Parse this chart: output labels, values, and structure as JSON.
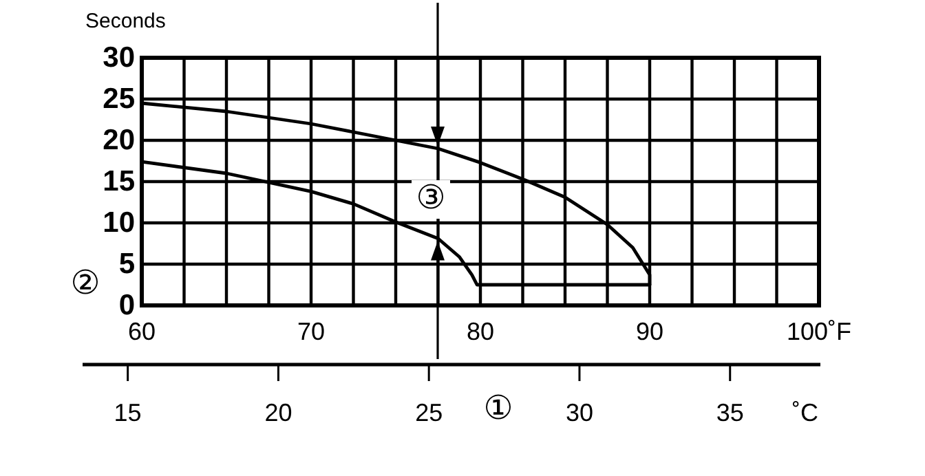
{
  "chart_data": {
    "type": "line",
    "ylabel": "Seconds",
    "x2label": "˚C",
    "xlim": [
      60,
      100
    ],
    "xticks": [
      60,
      {
        "value": 62.5,
        "label": null
      },
      {
        "value": 65,
        "label": null
      },
      {
        "value": 67.5,
        "label": null
      },
      70,
      {
        "value": 72.5,
        "label": null
      },
      {
        "value": 75,
        "label": null
      },
      {
        "value": 77.5,
        "label": null
      },
      80,
      {
        "value": 82.5,
        "label": null
      },
      {
        "value": 85,
        "label": null
      },
      {
        "value": 87.5,
        "label": null
      },
      90,
      {
        "value": 92.5,
        "label": null
      },
      {
        "value": 95,
        "label": null
      },
      {
        "value": 97.5,
        "label": null
      },
      {
        "value": 100,
        "label": "100˚F"
      }
    ],
    "x2lim": [
      13.5,
      38
    ],
    "x2ticks": [
      15,
      20,
      25,
      30,
      35
    ],
    "ylim": [
      0,
      30
    ],
    "yticks": [
      0,
      5,
      10,
      15,
      20,
      25,
      30
    ],
    "grid": true,
    "marker": "none",
    "line_style": "solid",
    "series": [
      {
        "color": "#000000",
        "x": [
          60,
          65,
          70,
          75,
          77.5,
          80,
          82.5,
          85,
          87.5,
          89,
          90,
          90
        ],
        "values": [
          24.5,
          23.5,
          22,
          20,
          19,
          17.3,
          15.3,
          13.1,
          9.8,
          7,
          3.7,
          2.5
        ]
      },
      {
        "color": "#000000",
        "x": [
          60,
          65,
          70,
          72.5,
          75,
          77.5,
          78.75,
          79.5,
          79.8,
          90
        ],
        "values": [
          17.4,
          16,
          13.8,
          12.3,
          10.1,
          8.1,
          5.9,
          3.7,
          2.5,
          2.5
        ]
      }
    ],
    "annotations": [
      "①",
      "②",
      "③"
    ]
  }
}
